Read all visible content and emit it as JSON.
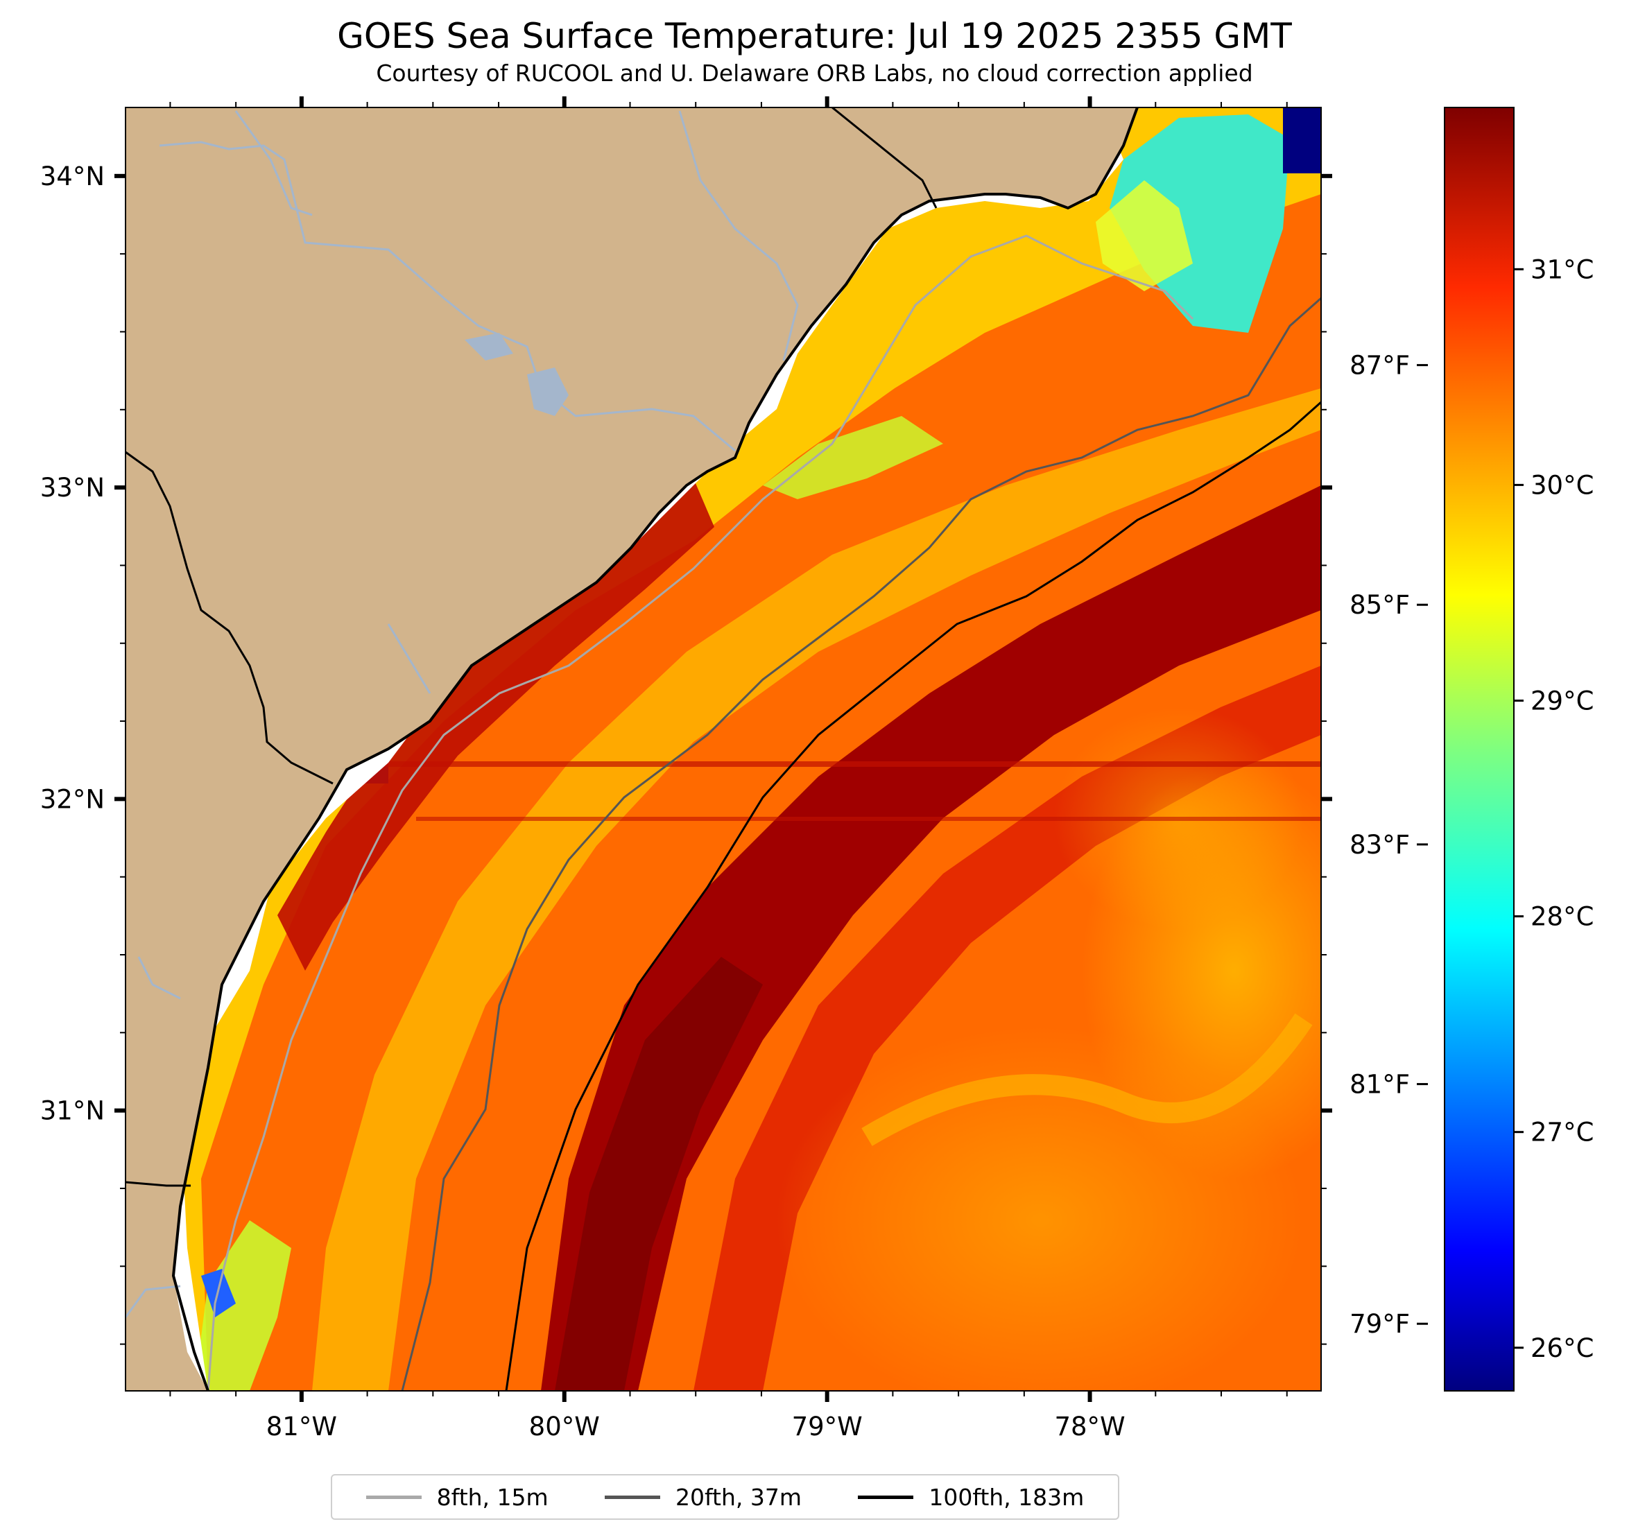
{
  "title": "GOES Sea Surface Temperature: Jul 19 2025 2355 GMT",
  "subtitle": "Courtesy of RUCOOL and U. Delaware ORB Labs, no cloud correction applied",
  "map": {
    "extent": {
      "lon_min": -81.67,
      "lon_max": -77.12,
      "lat_min": 30.1,
      "lat_max": 34.22
    },
    "lat_ticks": [
      {
        "value": 34,
        "label": "34°N"
      },
      {
        "value": 33,
        "label": "33°N"
      },
      {
        "value": 32,
        "label": "32°N"
      },
      {
        "value": 31,
        "label": "31°N"
      }
    ],
    "lon_ticks": [
      {
        "value": -81,
        "label": "81°W"
      },
      {
        "value": -80,
        "label": "80°W"
      },
      {
        "value": -79,
        "label": "79°W"
      },
      {
        "value": -78,
        "label": "78°W"
      }
    ],
    "land_color": "#d2b48c",
    "river_color": "#a4b6cc"
  },
  "colorbar": {
    "colormap": "jet",
    "celsius_range": [
      25.8,
      31.75
    ],
    "celsius_ticks": [
      {
        "value": 26,
        "label": "26°C"
      },
      {
        "value": 27,
        "label": "27°C"
      },
      {
        "value": 28,
        "label": "28°C"
      },
      {
        "value": 29,
        "label": "29°C"
      },
      {
        "value": 30,
        "label": "30°C"
      },
      {
        "value": 31,
        "label": "31°C"
      }
    ],
    "fahrenheit_ticks": [
      {
        "value": 79,
        "label": "79°F"
      },
      {
        "value": 81,
        "label": "81°F"
      },
      {
        "value": 83,
        "label": "83°F"
      },
      {
        "value": 85,
        "label": "85°F"
      },
      {
        "value": 87,
        "label": "87°F"
      }
    ]
  },
  "legend": {
    "placement": "bottom-center",
    "items": [
      {
        "label": "8fth, 15m",
        "color": "#a9a9a9"
      },
      {
        "label": "20fth, 37m",
        "color": "#555555"
      },
      {
        "label": "100fth, 183m",
        "color": "#000000"
      }
    ]
  }
}
